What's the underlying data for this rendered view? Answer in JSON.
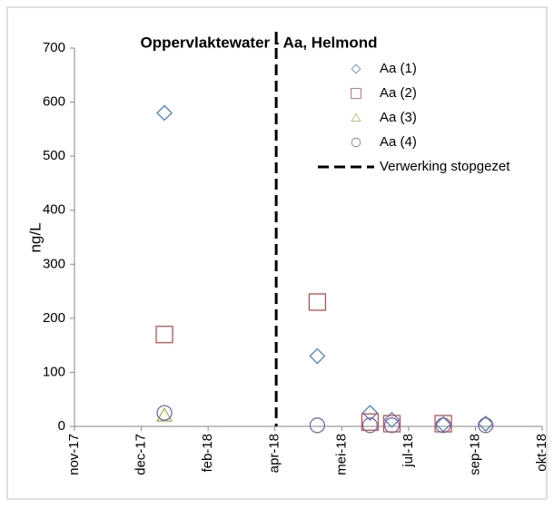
{
  "chart_data": {
    "type": "scatter",
    "title": "Oppervlaktewater - Aa, Helmond",
    "y_label": "ng/L",
    "x": [
      43110,
      43229,
      43270,
      43287,
      43327,
      43360
    ],
    "series": [
      {
        "name": "Aa (1)",
        "color": "#4f81bd",
        "marker": "diamond",
        "values": [
          580,
          130,
          25,
          12,
          4,
          5
        ]
      },
      {
        "name": "Aa (2)",
        "color": "#c0504d",
        "marker": "square",
        "values": [
          170,
          230,
          8,
          5,
          5,
          null
        ]
      },
      {
        "name": "Aa (3)",
        "color": "#9bbb59",
        "marker": "triangle",
        "values": [
          20,
          null,
          null,
          null,
          null,
          null
        ]
      },
      {
        "name": "Aa (4)",
        "color": "#8064a2",
        "marker": "circle",
        "values": [
          25,
          2,
          2,
          2,
          2,
          2
        ]
      }
    ],
    "vline": {
      "name": "Verwerking stopgezet",
      "x": 43197,
      "color": "#000000"
    },
    "xlim": [
      43040,
      43404
    ],
    "xticks": [
      {
        "value": 43040,
        "label": "nov-17"
      },
      {
        "value": 43092,
        "label": "dec-17"
      },
      {
        "value": 43144,
        "label": "feb-18"
      },
      {
        "value": 43196,
        "label": "apr-18"
      },
      {
        "value": 43248,
        "label": "mei-18"
      },
      {
        "value": 43300,
        "label": "jul-18"
      },
      {
        "value": 43352,
        "label": "sep-18"
      },
      {
        "value": 43404,
        "label": "okt-18"
      }
    ],
    "ylim": [
      0,
      700
    ],
    "yticks": [
      0,
      100,
      200,
      300,
      400,
      500,
      600,
      700
    ],
    "grid": false,
    "legend": "upper right"
  }
}
